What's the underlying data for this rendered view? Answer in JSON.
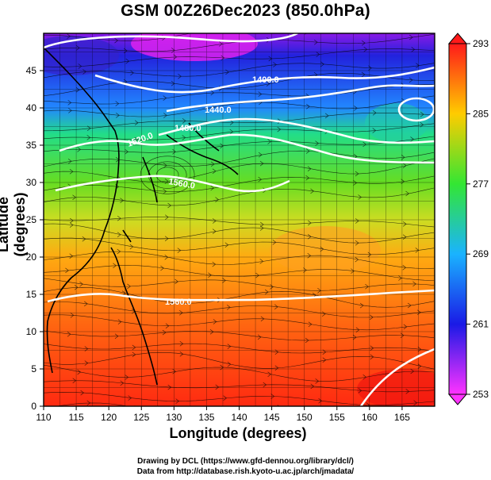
{
  "title": "GSM 00Z26Dec2023 (850.0hPa)",
  "xlabel": "Longitude (degrees)",
  "ylabel": "Latitude  (degrees)",
  "credits": {
    "line1": "Drawing by DCL (https://www.gfd-dennou.org/library/dcl/)",
    "line2": "Data from http://database.rish.kyoto-u.ac.jp/arch/jmadata/"
  },
  "map": {
    "lon_range": [
      110,
      170
    ],
    "lat_range": [
      0,
      50
    ],
    "x_ticks": [
      "110",
      "115",
      "120",
      "125",
      "130",
      "135",
      "140",
      "145",
      "150",
      "155",
      "160",
      "165"
    ],
    "y_ticks": [
      "0",
      "5",
      "10",
      "15",
      "20",
      "25",
      "30",
      "35",
      "40",
      "45"
    ],
    "grid": true,
    "background_field": "temperature (color shading)",
    "overlay": "wind streamlines and geopotential height contours (white)"
  },
  "colorbar": {
    "ticks": [
      "253",
      "261",
      "269",
      "277",
      "285",
      "293"
    ],
    "min": 253,
    "max": 293,
    "colors": [
      "#ff33ff",
      "#1a1ae6",
      "#1ab3ff",
      "#33e633",
      "#ffcc00",
      "#ff1a1a"
    ]
  },
  "contours": [
    {
      "label": "1400.0"
    },
    {
      "label": "1440.0"
    },
    {
      "label": "1480.0"
    },
    {
      "label": "1520.0"
    },
    {
      "label": "1560.0"
    },
    {
      "label": "1560.0"
    }
  ],
  "colors": {
    "contour": "#ffffff",
    "coastline": "#000000",
    "grid": "#000000"
  }
}
